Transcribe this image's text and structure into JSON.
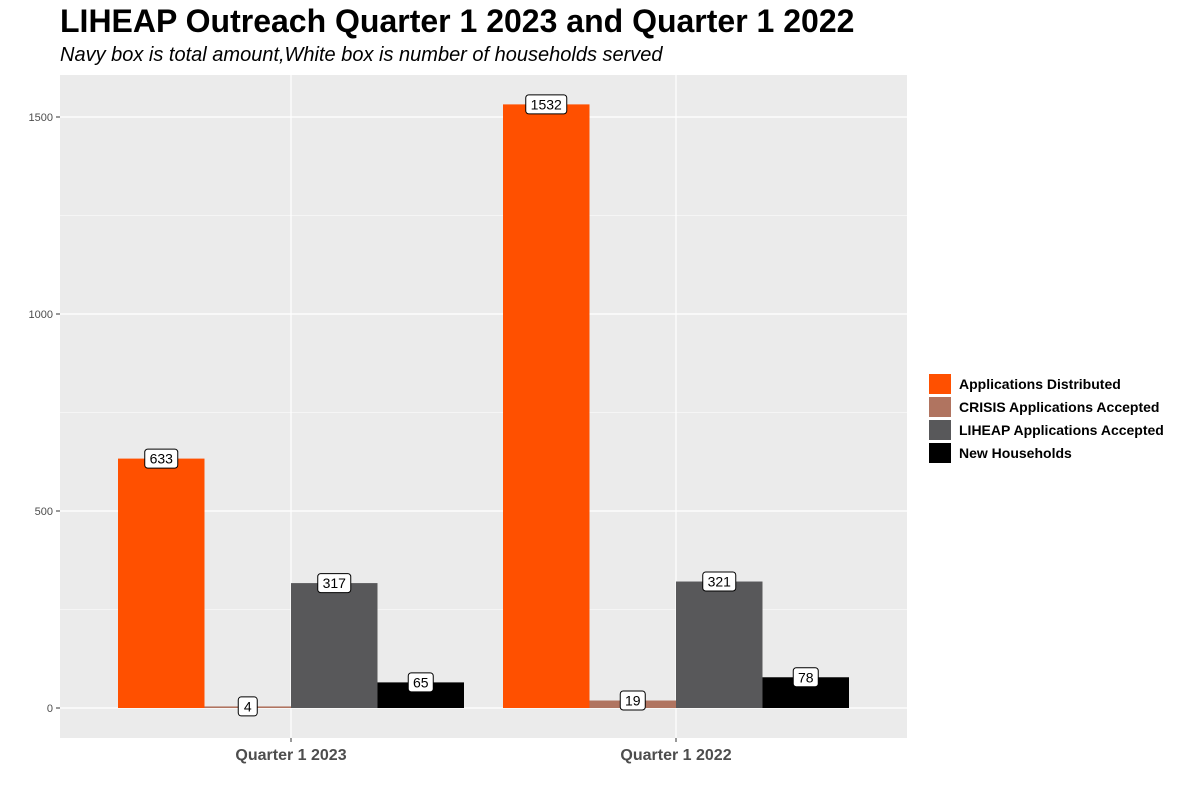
{
  "chart_data": {
    "type": "bar",
    "title": "LIHEAP Outreach Quarter 1 2023 and Quarter 1 2022",
    "subtitle": "Navy box is total amount,White box is number of households served",
    "xlabel": "",
    "ylabel": "",
    "categories": [
      "Quarter 1 2023",
      "Quarter 1 2022"
    ],
    "series": [
      {
        "name": "Applications Distributed",
        "color": "#FF5000",
        "values": [
          633,
          1532
        ]
      },
      {
        "name": "CRISIS Applications Accepted",
        "color": "#B07460",
        "values": [
          4,
          19
        ]
      },
      {
        "name": "LIHEAP Applications Accepted",
        "color": "#58585A",
        "values": [
          317,
          321
        ]
      },
      {
        "name": "New Households",
        "color": "#000000",
        "values": [
          65,
          78
        ]
      }
    ],
    "y_ticks": [
      "0",
      "500",
      "1000",
      "1500"
    ],
    "ylim": [
      -75,
      1610
    ],
    "grid": true,
    "legend_position": "right",
    "panel_background": "#EBEBEB",
    "gridline_color": "#FFFFFF"
  }
}
